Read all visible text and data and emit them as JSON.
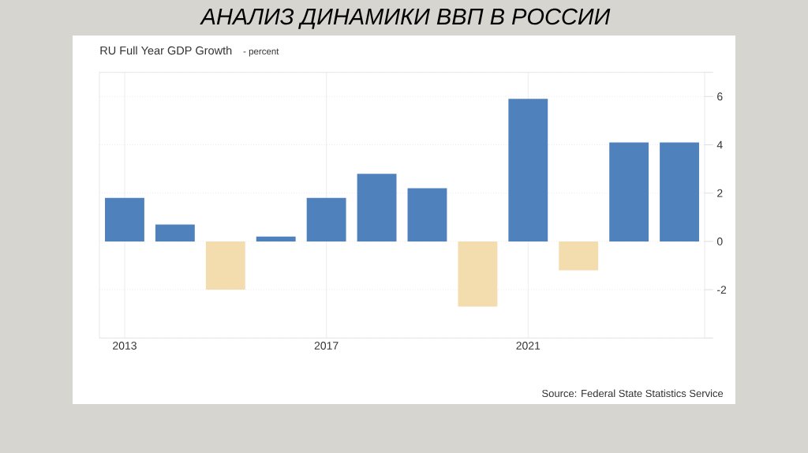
{
  "chart_data": {
    "type": "bar",
    "title": "АНАЛИЗ ДИНАМИКИ ВВП В РОССИИ",
    "subtitle": "RU Full Year GDP Growth",
    "ylabel": "- percent",
    "annotations": [
      "Source: Federal State Statistics Service"
    ],
    "categories": [
      "2013",
      null,
      null,
      null,
      "2017",
      null,
      null,
      null,
      "2021",
      null,
      null,
      null
    ],
    "values": [
      1.8,
      0.7,
      -2.0,
      0.2,
      1.8,
      2.8,
      2.2,
      -2.7,
      5.9,
      -1.2,
      4.1,
      4.1
    ],
    "colors": [
      "#4f81bd",
      "#4f81bd",
      "#f3dcae",
      "#4f81bd",
      "#4f81bd",
      "#4f81bd",
      "#4f81bd",
      "#f3dcae",
      "#4f81bd",
      "#f3dcae",
      "#4f81bd",
      "#4f81bd"
    ],
    "ylim": [
      -4,
      7
    ],
    "yticks": [
      {
        "value": -4,
        "label": null
      },
      -2,
      0,
      2,
      4,
      6,
      {
        "value": 7,
        "label": null
      }
    ],
    "grid": true
  }
}
